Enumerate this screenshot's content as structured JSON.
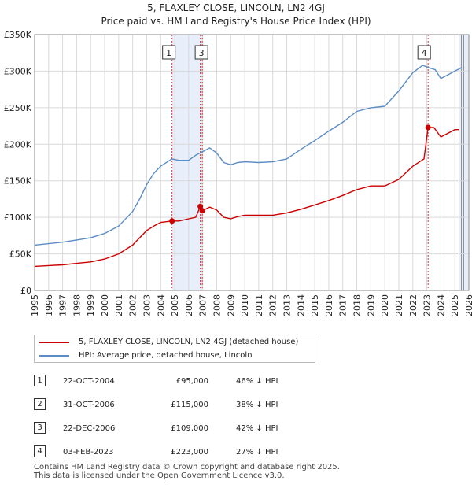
{
  "header": {
    "title": "5, FLAXLEY CLOSE, LINCOLN, LN2 4GJ",
    "subtitle": "Price paid vs. HM Land Registry's House Price Index (HPI)"
  },
  "chart_data": {
    "type": "line",
    "title": "5, FLAXLEY CLOSE, LINCOLN, LN2 4GJ",
    "subtitle": "Price paid vs. HM Land Registry's House Price Index (HPI)",
    "xlabel": "",
    "ylabel": "",
    "xlim": [
      1995,
      2026
    ],
    "ylim": [
      0,
      350000
    ],
    "y_ticks": [
      {
        "value": 0,
        "label": "£0"
      },
      {
        "value": 50000,
        "label": "£50K"
      },
      {
        "value": 100000,
        "label": "£100K"
      },
      {
        "value": 150000,
        "label": "£150K"
      },
      {
        "value": 200000,
        "label": "£200K"
      },
      {
        "value": 250000,
        "label": "£250K"
      },
      {
        "value": 300000,
        "label": "£300K"
      },
      {
        "value": 350000,
        "label": "£350K"
      }
    ],
    "x_ticks": [
      "1995",
      "1996",
      "1997",
      "1998",
      "1999",
      "2000",
      "2001",
      "2002",
      "2003",
      "2004",
      "2005",
      "2006",
      "2007",
      "2008",
      "2009",
      "2010",
      "2011",
      "2012",
      "2013",
      "2014",
      "2015",
      "2016",
      "2017",
      "2018",
      "2019",
      "2020",
      "2021",
      "2022",
      "2023",
      "2024",
      "2025",
      "2026"
    ],
    "grid": true,
    "legend_position": "bottom",
    "series": [
      {
        "name": "5, FLAXLEY CLOSE, LINCOLN, LN2 4GJ (detached house)",
        "color": "#cc0000",
        "points": [
          [
            1995.0,
            33000
          ],
          [
            1996.0,
            34000
          ],
          [
            1997.0,
            35000
          ],
          [
            1998.0,
            37000
          ],
          [
            1999.0,
            39000
          ],
          [
            2000.0,
            43000
          ],
          [
            2001.0,
            50000
          ],
          [
            2002.0,
            62000
          ],
          [
            2002.5,
            72000
          ],
          [
            2003.0,
            82000
          ],
          [
            2003.5,
            88000
          ],
          [
            2004.0,
            93000
          ],
          [
            2004.8,
            95000
          ],
          [
            2005.3,
            95000
          ],
          [
            2006.0,
            98000
          ],
          [
            2006.5,
            100000
          ],
          [
            2006.83,
            115000
          ],
          [
            2006.97,
            109000
          ],
          [
            2007.5,
            114000
          ],
          [
            2008.0,
            110000
          ],
          [
            2008.5,
            100000
          ],
          [
            2009.0,
            98000
          ],
          [
            2009.5,
            101000
          ],
          [
            2010.0,
            103000
          ],
          [
            2011.0,
            103000
          ],
          [
            2012.0,
            103000
          ],
          [
            2013.0,
            106000
          ],
          [
            2014.0,
            111000
          ],
          [
            2015.0,
            117000
          ],
          [
            2016.0,
            123000
          ],
          [
            2017.0,
            130000
          ],
          [
            2018.0,
            138000
          ],
          [
            2019.0,
            143000
          ],
          [
            2020.0,
            143000
          ],
          [
            2021.0,
            152000
          ],
          [
            2022.0,
            170000
          ],
          [
            2022.8,
            180000
          ],
          [
            2023.09,
            223000
          ],
          [
            2023.5,
            223000
          ],
          [
            2024.0,
            210000
          ],
          [
            2024.5,
            215000
          ],
          [
            2025.0,
            220000
          ],
          [
            2025.3,
            220000
          ]
        ]
      },
      {
        "name": "HPI: Average price, detached house, Lincoln",
        "color": "#5b8cc4",
        "points": [
          [
            1995.0,
            62000
          ],
          [
            1996.0,
            64000
          ],
          [
            1997.0,
            66000
          ],
          [
            1998.0,
            69000
          ],
          [
            1999.0,
            72000
          ],
          [
            2000.0,
            78000
          ],
          [
            2001.0,
            88000
          ],
          [
            2002.0,
            108000
          ],
          [
            2002.5,
            125000
          ],
          [
            2003.0,
            145000
          ],
          [
            2003.5,
            160000
          ],
          [
            2004.0,
            170000
          ],
          [
            2004.8,
            180000
          ],
          [
            2005.3,
            178000
          ],
          [
            2006.0,
            178000
          ],
          [
            2006.5,
            185000
          ],
          [
            2007.0,
            190000
          ],
          [
            2007.5,
            195000
          ],
          [
            2008.0,
            188000
          ],
          [
            2008.5,
            175000
          ],
          [
            2009.0,
            172000
          ],
          [
            2009.5,
            175000
          ],
          [
            2010.0,
            176000
          ],
          [
            2011.0,
            175000
          ],
          [
            2012.0,
            176000
          ],
          [
            2013.0,
            180000
          ],
          [
            2014.0,
            193000
          ],
          [
            2015.0,
            205000
          ],
          [
            2016.0,
            218000
          ],
          [
            2017.0,
            230000
          ],
          [
            2018.0,
            245000
          ],
          [
            2019.0,
            250000
          ],
          [
            2020.0,
            252000
          ],
          [
            2021.0,
            273000
          ],
          [
            2022.0,
            298000
          ],
          [
            2022.7,
            308000
          ],
          [
            2023.1,
            305000
          ],
          [
            2023.6,
            302000
          ],
          [
            2024.0,
            290000
          ],
          [
            2024.5,
            295000
          ],
          [
            2025.0,
            300000
          ],
          [
            2025.5,
            305000
          ]
        ]
      }
    ],
    "transactions": [
      {
        "label": "1",
        "date": "22-OCT-2004",
        "x": 2004.81,
        "price": 95000,
        "price_text": "£95,000",
        "hpi_text": "46% ↓ HPI"
      },
      {
        "label": "2",
        "date": "31-OCT-2006",
        "x": 2006.83,
        "price": 115000,
        "price_text": "£115,000",
        "hpi_text": "38% ↓ HPI"
      },
      {
        "label": "3",
        "date": "22-DEC-2006",
        "x": 2006.97,
        "price": 109000,
        "price_text": "£109,000",
        "hpi_text": "42% ↓ HPI"
      },
      {
        "label": "4",
        "date": "03-FEB-2023",
        "x": 2023.09,
        "price": 223000,
        "price_text": "£223,000",
        "hpi_text": "27% ↓ HPI"
      }
    ],
    "shaded_spans": [
      [
        2004.81,
        2006.97
      ],
      [
        2025.3,
        2026.0
      ]
    ]
  },
  "legend": {
    "property_label": "5, FLAXLEY CLOSE, LINCOLN, LN2 4GJ (detached house)",
    "hpi_label": "HPI: Average price, detached house, Lincoln",
    "property_color": "#cc0000",
    "hpi_color": "#5b8cc4"
  },
  "footer": {
    "line1": "Contains HM Land Registry data © Crown copyright and database right 2025.",
    "line2": "This data is licensed under the Open Government Licence v3.0."
  }
}
